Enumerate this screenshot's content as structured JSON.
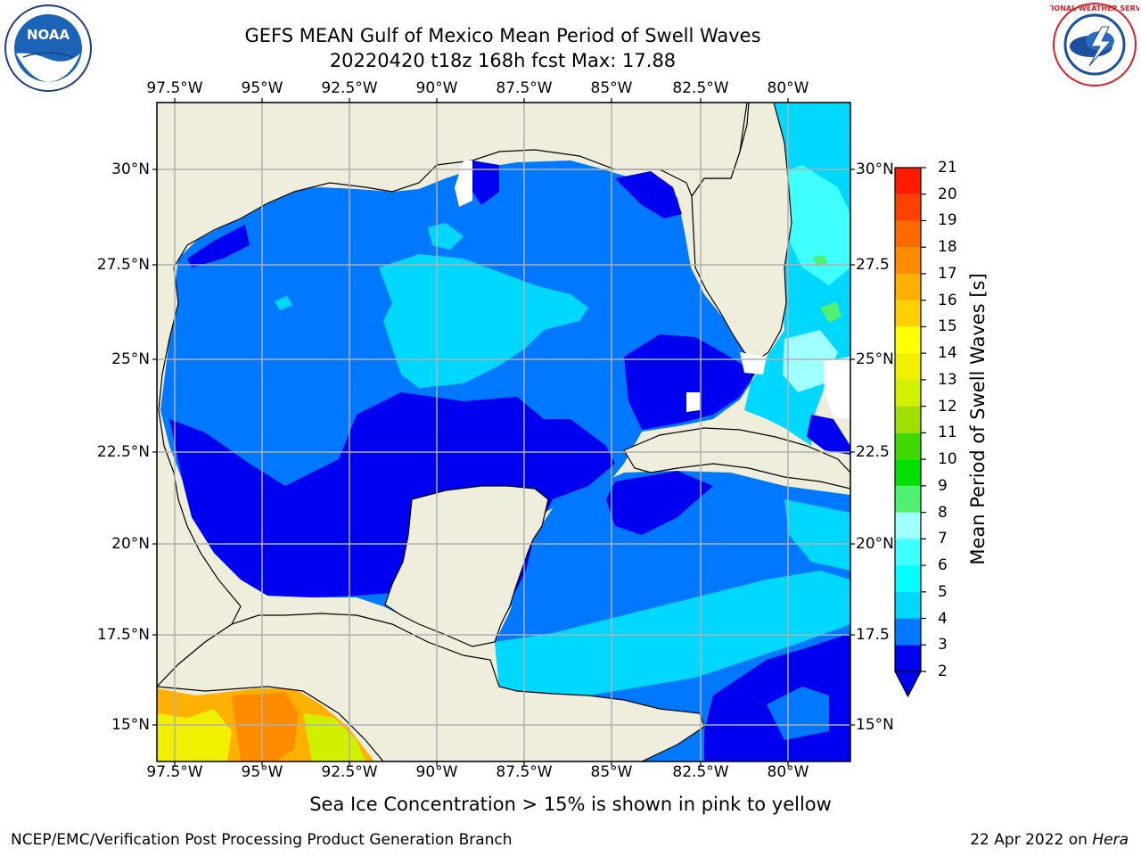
{
  "title": {
    "line1": "GEFS MEAN Gulf of Mexico Mean Period of Swell Waves",
    "line2": "20220420 t18z 168h fcst   Max: 17.88"
  },
  "logos": {
    "left": {
      "icon": "noaa-logo",
      "text": "NOAA"
    },
    "right": {
      "icon": "national-weather-service-logo",
      "text": "NATIONAL WEATHER SERVICE"
    }
  },
  "map": {
    "lon_labels": [
      "97.5°W",
      "95°W",
      "92.5°W",
      "90°W",
      "87.5°W",
      "85°W",
      "82.5°W",
      "80°W"
    ],
    "lat_labels_left": [
      "30°N",
      "27.5°N",
      "25°N",
      "22.5°N",
      "20°N",
      "17.5°N",
      "15°N"
    ],
    "lat_labels_right": [
      "30°N",
      "27.5",
      "25°N",
      "22.5",
      "20°N",
      "17.5",
      "15°N"
    ],
    "colors": {
      "land": "#efeedc",
      "gridline": "#b0b0b0",
      "coastline": "#000000"
    }
  },
  "colorbar": {
    "label": "Mean Period of Swell Waves [s]",
    "ticks": [
      "21",
      "20",
      "19",
      "18",
      "17",
      "16",
      "15",
      "14",
      "13",
      "12",
      "11",
      "10",
      "9",
      "8",
      "7",
      "6",
      "5",
      "4",
      "3",
      "2"
    ],
    "tick_values": [
      21,
      20,
      19,
      18,
      17,
      16,
      15,
      14,
      13,
      12,
      11,
      10,
      9,
      8,
      7,
      6,
      5,
      4,
      3,
      2
    ],
    "colors": [
      "#0000f0",
      "#0078ff",
      "#00d8ff",
      "#00ffff",
      "#40ffff",
      "#a0ffff",
      "#50f070",
      "#00e000",
      "#40d800",
      "#a0e000",
      "#d0f000",
      "#f0f000",
      "#ffff00",
      "#ffd000",
      "#ffb000",
      "#ff8c00",
      "#ff6a00",
      "#ff4000",
      "#ff1a00"
    ],
    "range": [
      2,
      21
    ],
    "extend": "min"
  },
  "note": "Sea Ice Concentration > 15% is shown in pink to yellow",
  "footer": {
    "left": "NCEP/EMC/Verification Post Processing Product Generation Branch",
    "right_date": "22 Apr 2022 on",
    "right_machine": "Hera"
  }
}
